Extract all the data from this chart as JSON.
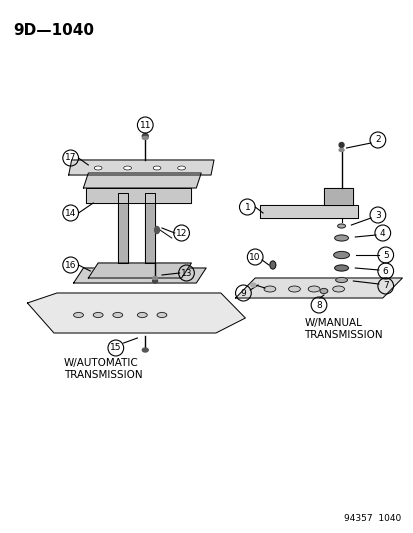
{
  "title": "9D—1040",
  "footer": "94357  1040",
  "bg_color": "#ffffff",
  "text_color": "#000000",
  "auto_label": "W/AUTOMATIC\nTRANSMISSION",
  "manual_label": "W/MANUAL\nTRANSMISSION",
  "part_numbers_auto": [
    11,
    17,
    14,
    16,
    12,
    13,
    15
  ],
  "part_numbers_manual": [
    1,
    2,
    3,
    4,
    5,
    6,
    7,
    8,
    9,
    10
  ]
}
